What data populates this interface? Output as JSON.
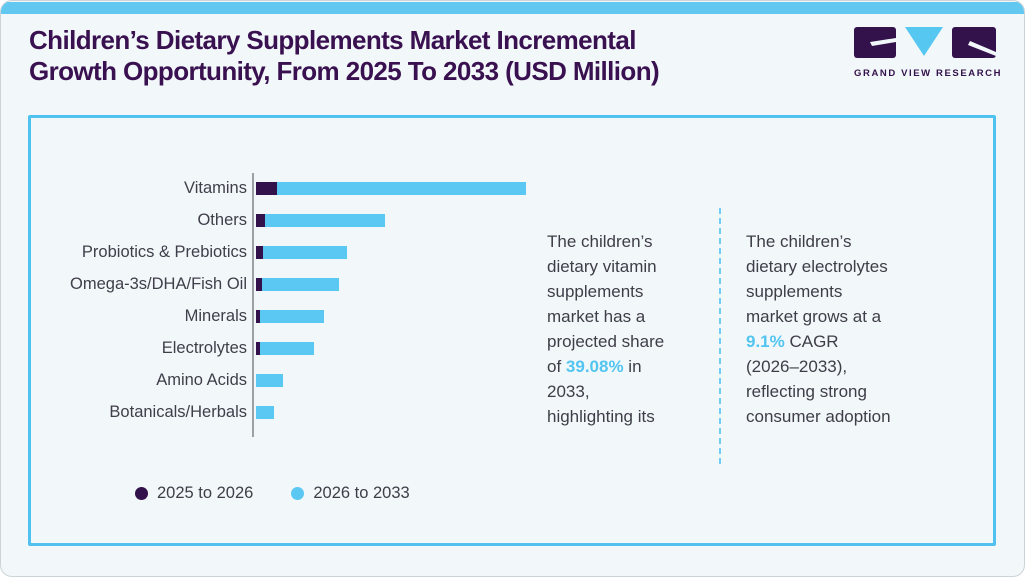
{
  "page": {
    "background": "#f2f7fa",
    "top_strip_color": "#63c8ef"
  },
  "header": {
    "title_line1": "Children’s Dietary Supplements Market Incremental",
    "title_line2": "Growth Opportunity, From 2025 To 2033 (USD Million)",
    "title_color": "#3a1150",
    "logo_text": "GRAND VIEW RESEARCH"
  },
  "chart_data": {
    "type": "bar",
    "orientation": "horizontal",
    "title": "Children’s Dietary Supplements Market Incremental Growth Opportunity, From 2025 To 2033 (USD Million)",
    "value_unit": "USD Million",
    "value_axis_labeled": false,
    "values_note": "No numeric axis is shown in the figure; segment values are relative units where the longest total bar (Vitamins) = 100.",
    "grid": false,
    "legend_position": "bottom-left",
    "categories": [
      "Vitamins",
      "Others",
      "Probiotics & Prebiotics",
      "Omega-3s/DHA/Fish Oil",
      "Minerals",
      "Electrolytes",
      "Amino Acids",
      "Botanicals/Herbals"
    ],
    "series": [
      {
        "name": "2025 to 2026",
        "color": "#33114a",
        "values": [
          7.8,
          3.5,
          2.6,
          2.2,
          1.6,
          1.6,
          0,
          0
        ]
      },
      {
        "name": "2026 to 2033",
        "color": "#5bc8f3",
        "values": [
          92.2,
          44.3,
          31.1,
          28.5,
          23.7,
          19.9,
          10.0,
          6.6
        ]
      }
    ]
  },
  "annotations": {
    "accent_color": "#52c5f0",
    "block1": {
      "full_text": "The children’s dietary vitamin supplements market has a projected share of 39.08% in 2033, highlighting its",
      "accent_value": "39.08%",
      "lines": [
        [
          {
            "t": "The children’s"
          }
        ],
        [
          {
            "t": "dietary vitamin"
          }
        ],
        [
          {
            "t": "supplements"
          }
        ],
        [
          {
            "t": "market has a"
          }
        ],
        [
          {
            "t": "projected share"
          }
        ],
        [
          {
            "t": "of "
          },
          {
            "t": "39.08%",
            "accent": true
          },
          {
            "t": " in"
          }
        ],
        [
          {
            "t": "2033,"
          }
        ],
        [
          {
            "t": "highlighting its"
          }
        ]
      ]
    },
    "block2": {
      "full_text": "The children’s dietary electrolytes supplements market grows at a 9.1% CAGR (2026–2033), reflecting strong consumer adoption",
      "accent_value": "9.1%",
      "lines": [
        [
          {
            "t": "The children’s"
          }
        ],
        [
          {
            "t": "dietary electrolytes"
          }
        ],
        [
          {
            "t": "supplements"
          }
        ],
        [
          {
            "t": "market grows at a"
          }
        ],
        [
          {
            "t": "9.1%",
            "accent": true
          },
          {
            "t": " CAGR"
          }
        ],
        [
          {
            "t": "(2026–2033),"
          }
        ],
        [
          {
            "t": "reflecting strong"
          }
        ],
        [
          {
            "t": "consumer adoption"
          }
        ]
      ]
    }
  },
  "colors": {
    "dark_purple": "#33114a",
    "light_blue": "#5bc8f3",
    "card_border": "#4fc2ef",
    "axis_line": "#9ba1a7"
  }
}
